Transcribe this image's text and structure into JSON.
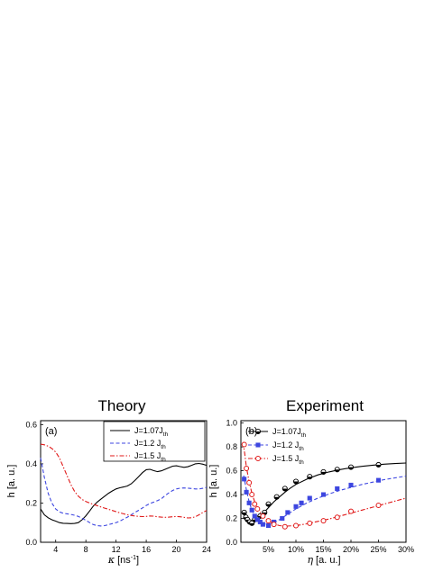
{
  "chart_data": [
    {
      "type": "line",
      "title": "Theory",
      "panel_label": "(a)",
      "xlabel_sym": "κ",
      "xlabel_unit": "[ns",
      "xlabel_sup": "-1",
      "xlabel_close": "]",
      "ylabel": "h [a. u.]",
      "xlim": [
        2,
        24
      ],
      "ylim": [
        0,
        0.62
      ],
      "xticks": [
        4,
        8,
        12,
        16,
        20,
        24
      ],
      "yticks": [
        0.0,
        0.2,
        0.4,
        0.6
      ],
      "ytick_labels": [
        "0.0",
        "0.2",
        "0.4",
        "0.6"
      ],
      "legend_position": "top-right",
      "series": [
        {
          "name": "J=1.07J",
          "name_sub": "th",
          "color": "#000000",
          "dash": "solid",
          "x": [
            2,
            2.5,
            3,
            3.5,
            4,
            4.5,
            5,
            5.5,
            6,
            6.5,
            7,
            7.5,
            8,
            8.5,
            9,
            9.5,
            10,
            10.5,
            11,
            11.5,
            12,
            12.5,
            13,
            13.5,
            14,
            14.5,
            15,
            15.5,
            16,
            16.5,
            17,
            17.5,
            18,
            18.5,
            19,
            19.5,
            20,
            20.5,
            21,
            21.5,
            22,
            22.5,
            23,
            23.5,
            24
          ],
          "y": [
            0.17,
            0.14,
            0.125,
            0.115,
            0.108,
            0.1,
            0.097,
            0.096,
            0.095,
            0.096,
            0.1,
            0.115,
            0.135,
            0.16,
            0.185,
            0.205,
            0.22,
            0.235,
            0.25,
            0.262,
            0.272,
            0.278,
            0.282,
            0.287,
            0.298,
            0.315,
            0.335,
            0.355,
            0.37,
            0.372,
            0.365,
            0.36,
            0.364,
            0.372,
            0.38,
            0.388,
            0.39,
            0.386,
            0.382,
            0.385,
            0.392,
            0.4,
            0.402,
            0.398,
            0.392
          ]
        },
        {
          "name": "J=1.2 J",
          "name_sub": "th",
          "color": "#3d46e0",
          "dash": "dashed",
          "x": [
            2,
            2.5,
            3,
            3.5,
            4,
            4.5,
            5,
            5.5,
            6,
            6.5,
            7,
            7.5,
            8,
            8.5,
            9,
            9.5,
            10,
            10.5,
            11,
            11.5,
            12,
            12.5,
            13,
            13.5,
            14,
            14.5,
            15,
            15.5,
            16,
            16.5,
            17,
            17.5,
            18,
            18.5,
            19,
            19.5,
            20,
            20.5,
            21,
            21.5,
            22,
            22.5,
            23,
            23.5,
            24
          ],
          "y": [
            0.43,
            0.33,
            0.25,
            0.2,
            0.17,
            0.155,
            0.148,
            0.145,
            0.142,
            0.138,
            0.132,
            0.122,
            0.112,
            0.1,
            0.09,
            0.085,
            0.083,
            0.085,
            0.09,
            0.095,
            0.1,
            0.108,
            0.118,
            0.128,
            0.14,
            0.152,
            0.163,
            0.175,
            0.188,
            0.198,
            0.205,
            0.212,
            0.222,
            0.238,
            0.252,
            0.264,
            0.272,
            0.276,
            0.277,
            0.276,
            0.274,
            0.272,
            0.272,
            0.275,
            0.28
          ]
        },
        {
          "name": "J=1.5 J",
          "name_sub": "th",
          "color": "#e01818",
          "dash": "dashdot",
          "x": [
            2,
            2.5,
            3,
            3.5,
            4,
            4.5,
            5,
            5.5,
            6,
            6.5,
            7,
            7.5,
            8,
            8.5,
            9,
            9.5,
            10,
            10.5,
            11,
            11.5,
            12,
            12.5,
            13,
            13.5,
            14,
            14.5,
            15,
            15.5,
            16,
            16.5,
            17,
            17.5,
            18,
            18.5,
            19,
            19.5,
            20,
            20.5,
            21,
            21.5,
            22,
            22.5,
            23,
            23.5,
            24
          ],
          "y": [
            0.5,
            0.497,
            0.49,
            0.478,
            0.46,
            0.43,
            0.385,
            0.34,
            0.295,
            0.26,
            0.235,
            0.218,
            0.208,
            0.2,
            0.193,
            0.187,
            0.18,
            0.174,
            0.168,
            0.162,
            0.156,
            0.15,
            0.145,
            0.14,
            0.137,
            0.134,
            0.132,
            0.131,
            0.132,
            0.134,
            0.133,
            0.13,
            0.128,
            0.127,
            0.128,
            0.13,
            0.132,
            0.13,
            0.127,
            0.124,
            0.125,
            0.13,
            0.14,
            0.152,
            0.162
          ]
        }
      ]
    },
    {
      "type": "line",
      "title": "Experiment",
      "panel_label": "(b)",
      "xlabel_sym": "η",
      "xlabel_unit": "[a. u.]",
      "ylabel": "h [a. u.]",
      "xlim": [
        0,
        30
      ],
      "ylim": [
        0,
        1.02
      ],
      "xticks": [
        5,
        10,
        15,
        20,
        25,
        30
      ],
      "xtick_labels": [
        "5%",
        "10%",
        "15%",
        "20%",
        "25%",
        "30%"
      ],
      "yticks": [
        0.0,
        0.2,
        0.4,
        0.6,
        0.8,
        1.0
      ],
      "ytick_labels": [
        "0.0",
        "0.2",
        "0.4",
        "0.6",
        "0.8",
        "1.0"
      ],
      "legend_position": "top-left",
      "series": [
        {
          "name": "J=1.07J",
          "name_sub": "th",
          "color": "#000000",
          "dash": "solid",
          "marker": "half-filled-circle",
          "points_x": [
            0.6,
            0.9,
            1.2,
            1.6,
            2.0,
            2.5,
            3.0,
            3.5,
            4.3,
            5.0,
            6.5,
            8.0,
            10.0,
            12.5,
            15.0,
            17.5,
            20.0,
            25.0
          ],
          "points_y": [
            0.25,
            0.21,
            0.19,
            0.17,
            0.16,
            0.19,
            0.2,
            0.22,
            0.25,
            0.32,
            0.38,
            0.45,
            0.51,
            0.55,
            0.59,
            0.61,
            0.63,
            0.65
          ],
          "fit_x": [
            0.5,
            1.5,
            2.3,
            3,
            4,
            5,
            6,
            7,
            8,
            9,
            10,
            12,
            14,
            16,
            18,
            20,
            22,
            24,
            26,
            28,
            30
          ],
          "fit_y": [
            0.24,
            0.165,
            0.163,
            0.19,
            0.24,
            0.29,
            0.34,
            0.38,
            0.42,
            0.455,
            0.485,
            0.53,
            0.565,
            0.59,
            0.61,
            0.625,
            0.637,
            0.647,
            0.655,
            0.66,
            0.665
          ]
        },
        {
          "name": "J=1.2 J",
          "name_sub": "th",
          "color": "#3d46e0",
          "dash": "dashed",
          "marker": "filled-square",
          "points_x": [
            0.6,
            1.0,
            1.5,
            2.0,
            2.5,
            3.0,
            3.5,
            4.0,
            5.0,
            6.0,
            7.5,
            8.5,
            10.0,
            11.0,
            12.5,
            15.0,
            17.5,
            20.0,
            25.0
          ],
          "points_y": [
            0.53,
            0.42,
            0.33,
            0.27,
            0.22,
            0.19,
            0.17,
            0.15,
            0.14,
            0.17,
            0.2,
            0.25,
            0.3,
            0.33,
            0.37,
            0.4,
            0.45,
            0.48,
            0.52
          ],
          "fit_x": [
            0.5,
            1,
            1.5,
            2,
            2.5,
            3,
            3.5,
            4,
            5,
            6,
            7,
            8,
            10,
            12,
            14,
            16,
            18,
            20,
            22,
            24,
            26,
            28,
            30
          ],
          "fit_y": [
            0.56,
            0.44,
            0.34,
            0.27,
            0.22,
            0.19,
            0.17,
            0.155,
            0.15,
            0.165,
            0.19,
            0.22,
            0.28,
            0.33,
            0.37,
            0.405,
            0.435,
            0.46,
            0.485,
            0.505,
            0.525,
            0.54,
            0.555
          ]
        },
        {
          "name": "J=1.5 J",
          "name_sub": "th",
          "color": "#e01818",
          "dash": "dashdot",
          "marker": "open-circle",
          "points_x": [
            0.6,
            1.0,
            1.5,
            2.0,
            2.5,
            3.0,
            4.0,
            5.0,
            6.0,
            8.0,
            10.0,
            12.5,
            15.0,
            17.5,
            20.0,
            25.0
          ],
          "points_y": [
            0.82,
            0.62,
            0.5,
            0.4,
            0.32,
            0.28,
            0.22,
            0.18,
            0.15,
            0.13,
            0.14,
            0.16,
            0.18,
            0.21,
            0.26,
            0.31
          ],
          "fit_x": [
            0.4,
            0.7,
            1,
            1.5,
            2,
            2.5,
            3,
            3.5,
            4,
            5,
            6,
            7,
            8,
            10,
            12,
            14,
            16,
            18,
            20,
            22,
            24,
            26,
            28,
            30
          ],
          "fit_y": [
            0.84,
            0.74,
            0.63,
            0.51,
            0.41,
            0.34,
            0.29,
            0.25,
            0.22,
            0.18,
            0.155,
            0.14,
            0.135,
            0.14,
            0.155,
            0.175,
            0.195,
            0.22,
            0.245,
            0.27,
            0.295,
            0.32,
            0.345,
            0.37
          ]
        }
      ]
    }
  ]
}
